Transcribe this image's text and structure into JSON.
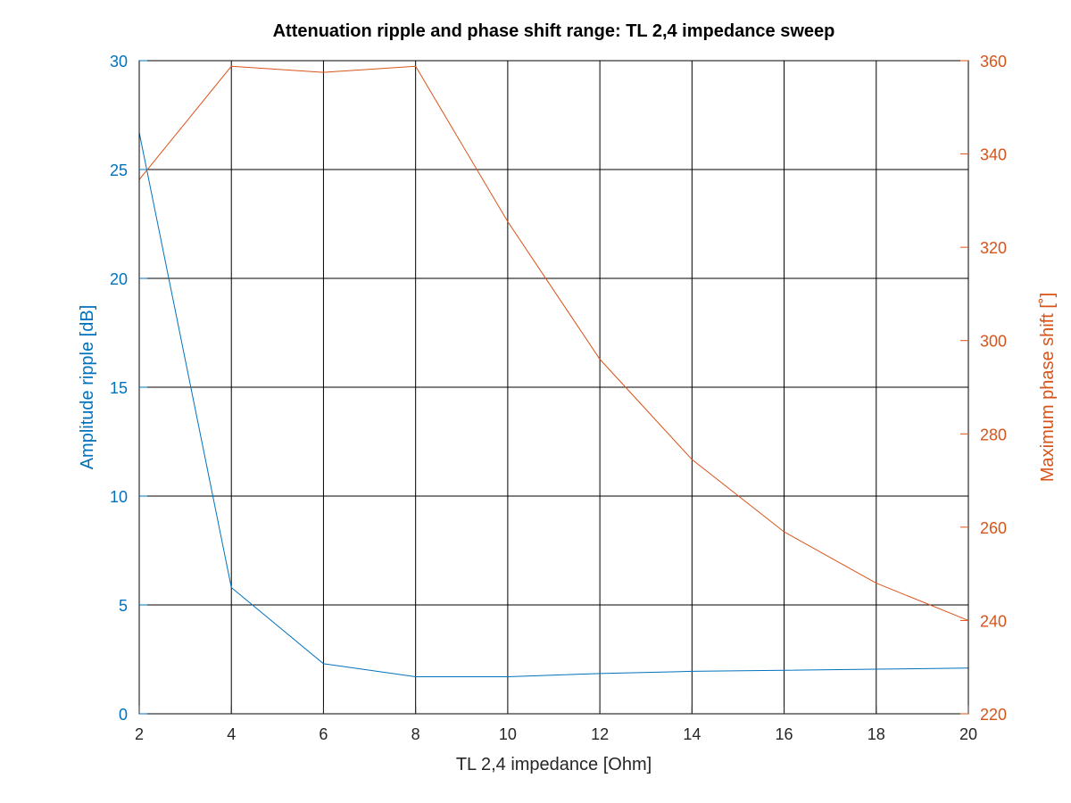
{
  "chart_data": {
    "type": "line",
    "title": "Attenuation ripple and phase shift range: TL 2,4 impedance sweep",
    "xlabel": "TL 2,4 impedance [Ohm]",
    "ylabel_left": "Amplitude ripple [dB]",
    "ylabel_right": "Maximum phase shift [˚]",
    "xlim": [
      2,
      20
    ],
    "ylim_left": [
      0,
      30
    ],
    "ylim_right": [
      220,
      360
    ],
    "grid": true,
    "x_ticks": [
      "2",
      "4",
      "6",
      "8",
      "10",
      "12",
      "14",
      "16",
      "18",
      "20"
    ],
    "y_left_ticks": [
      "0",
      "5",
      "10",
      "15",
      "20",
      "25",
      "30"
    ],
    "y_right_ticks": [
      "220",
      "240",
      "260",
      "280",
      "300",
      "320",
      "340",
      "360"
    ],
    "colors": {
      "left": "#0072bd",
      "right": "#d95319",
      "grid": "#000000"
    },
    "series": [
      {
        "axis": "left",
        "x": [
          2,
          4,
          6,
          8,
          10,
          12,
          14,
          16,
          18,
          20
        ],
        "values": [
          26.7,
          5.8,
          2.3,
          1.7,
          1.7,
          1.85,
          1.95,
          2.0,
          2.05,
          2.1
        ]
      },
      {
        "axis": "right",
        "x": [
          2,
          4,
          6,
          8,
          10,
          12,
          14,
          16,
          18,
          20
        ],
        "values": [
          334.5,
          358.8,
          357.5,
          358.8,
          325.5,
          296.0,
          274.5,
          259.0,
          248.0,
          240.0
        ]
      }
    ]
  }
}
